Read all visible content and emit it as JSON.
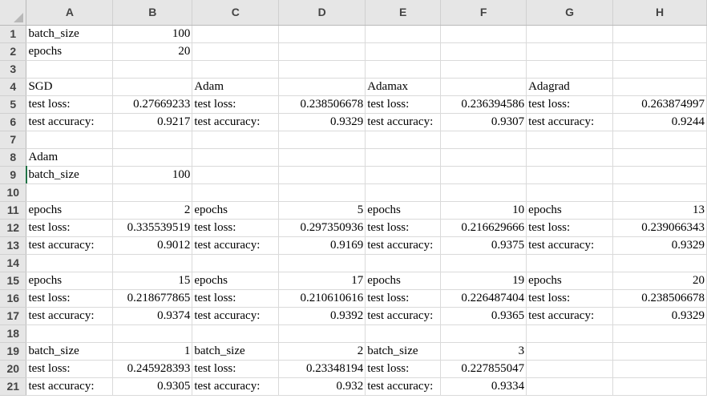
{
  "columns": [
    "A",
    "B",
    "C",
    "D",
    "E",
    "F",
    "G",
    "H"
  ],
  "rows": [
    {
      "num": "1",
      "cells": [
        "batch_size",
        "100",
        "",
        "",
        "",
        "",
        "",
        ""
      ]
    },
    {
      "num": "2",
      "cells": [
        "epochs",
        "20",
        "",
        "",
        "",
        "",
        "",
        ""
      ]
    },
    {
      "num": "3",
      "cells": [
        "",
        "",
        "",
        "",
        "",
        "",
        "",
        ""
      ]
    },
    {
      "num": "4",
      "cells": [
        "SGD",
        "",
        "Adam",
        "",
        "Adamax",
        "",
        "Adagrad",
        ""
      ]
    },
    {
      "num": "5",
      "cells": [
        "test loss:",
        "0.27669233",
        "test loss:",
        "0.238506678",
        "test loss:",
        "0.236394586",
        "test loss:",
        "0.263874997"
      ]
    },
    {
      "num": "6",
      "cells": [
        "test accuracy:",
        "0.9217",
        "test accuracy:",
        "0.9329",
        "test accuracy:",
        "0.9307",
        "test accuracy:",
        "0.9244"
      ]
    },
    {
      "num": "7",
      "cells": [
        "",
        "",
        "",
        "",
        "",
        "",
        "",
        ""
      ]
    },
    {
      "num": "8",
      "cells": [
        "Adam",
        "",
        "",
        "",
        "",
        "",
        "",
        ""
      ]
    },
    {
      "num": "9",
      "cells": [
        "batch_size",
        "100",
        "",
        "",
        "",
        "",
        "",
        ""
      ]
    },
    {
      "num": "10",
      "cells": [
        "",
        "",
        "",
        "",
        "",
        "",
        "",
        ""
      ]
    },
    {
      "num": "11",
      "cells": [
        "epochs",
        "2",
        "epochs",
        "5",
        "epochs",
        "10",
        "epochs",
        "13"
      ]
    },
    {
      "num": "12",
      "cells": [
        "test loss:",
        "0.335539519",
        "test loss:",
        "0.297350936",
        "test loss:",
        "0.216629666",
        "test loss:",
        "0.239066343"
      ]
    },
    {
      "num": "13",
      "cells": [
        "test accuracy:",
        "0.9012",
        "test accuracy:",
        "0.9169",
        "test accuracy:",
        "0.9375",
        "test accuracy:",
        "0.9329"
      ]
    },
    {
      "num": "14",
      "cells": [
        "",
        "",
        "",
        "",
        "",
        "",
        "",
        ""
      ]
    },
    {
      "num": "15",
      "cells": [
        "epochs",
        "15",
        "epochs",
        "17",
        "epochs",
        "19",
        "epochs",
        "20"
      ]
    },
    {
      "num": "16",
      "cells": [
        "test loss:",
        "0.218677865",
        "test loss:",
        "0.210610616",
        "test loss:",
        "0.226487404",
        "test loss:",
        "0.238506678"
      ]
    },
    {
      "num": "17",
      "cells": [
        "test accuracy:",
        "0.9374",
        "test accuracy:",
        "0.9392",
        "test accuracy:",
        "0.9365",
        "test accuracy:",
        "0.9329"
      ]
    },
    {
      "num": "18",
      "cells": [
        "",
        "",
        "",
        "",
        "",
        "",
        "",
        ""
      ]
    },
    {
      "num": "19",
      "cells": [
        "batch_size",
        "1",
        "batch_size",
        "2",
        "batch_size",
        "3",
        "",
        ""
      ]
    },
    {
      "num": "20",
      "cells": [
        "test loss:",
        "0.245928393",
        "test loss:",
        "0.23348194",
        "test loss:",
        "0.227855047",
        "",
        ""
      ]
    },
    {
      "num": "21",
      "cells": [
        "test accuracy:",
        "0.9305",
        "test accuracy:",
        "0.932",
        "test accuracy:",
        "0.9334",
        "",
        ""
      ]
    }
  ],
  "colors": {
    "header_bg": "#e6e6e6",
    "grid": "#dadada",
    "selection": "#217346"
  }
}
